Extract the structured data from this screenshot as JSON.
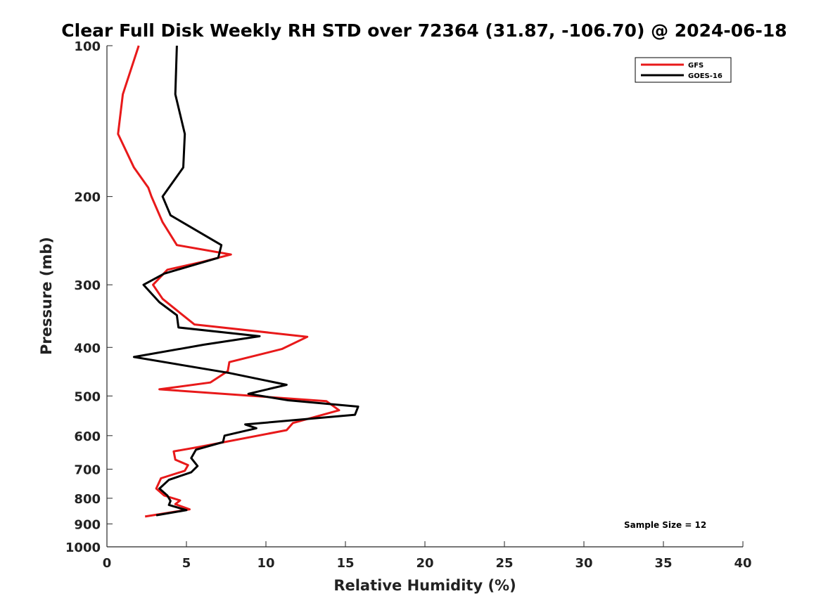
{
  "chart_data": {
    "type": "line",
    "title": "Clear Full Disk Weekly RH STD over 72364 (31.87, -106.70) @ 2024-06-18",
    "xlabel": "Relative Humidity (%)",
    "ylabel": "Pressure (mb)",
    "xlim": [
      0,
      40
    ],
    "ylim": [
      100,
      1000
    ],
    "yscale": "log",
    "yreversed": true,
    "x_ticks": [
      "0",
      "5",
      "10",
      "15",
      "20",
      "25",
      "30",
      "35",
      "40"
    ],
    "y_ticks": [
      "100",
      "200",
      "300",
      "400",
      "500",
      "600",
      "700",
      "800",
      "900",
      "1000"
    ],
    "grid": false,
    "legend_position": "top-right",
    "annotation": "Sample Size = 12",
    "series": [
      {
        "name": "GFS",
        "color": "#e8191a",
        "points": [
          [
            2.0,
            100
          ],
          [
            1.0,
            125
          ],
          [
            0.7,
            150
          ],
          [
            1.7,
            175
          ],
          [
            2.6,
            192
          ],
          [
            2.8,
            200
          ],
          [
            3.5,
            225
          ],
          [
            4.4,
            250
          ],
          [
            7.8,
            261
          ],
          [
            6.0,
            270
          ],
          [
            3.8,
            280
          ],
          [
            2.9,
            300
          ],
          [
            3.5,
            320
          ],
          [
            5.5,
            360
          ],
          [
            12.6,
            381
          ],
          [
            11.0,
            403
          ],
          [
            7.7,
            428
          ],
          [
            7.6,
            446
          ],
          [
            6.5,
            470
          ],
          [
            3.3,
            485
          ],
          [
            13.8,
            512
          ],
          [
            14.6,
            534
          ],
          [
            11.7,
            566
          ],
          [
            11.3,
            585
          ],
          [
            5.8,
            632
          ],
          [
            4.2,
            645
          ],
          [
            4.3,
            670
          ],
          [
            5.1,
            687
          ],
          [
            4.9,
            705
          ],
          [
            3.4,
            730
          ],
          [
            3.1,
            765
          ],
          [
            3.6,
            790
          ],
          [
            4.6,
            808
          ],
          [
            4.3,
            822
          ],
          [
            5.2,
            842
          ],
          [
            2.4,
            870
          ]
        ]
      },
      {
        "name": "GOES-16",
        "color": "#000000",
        "points": [
          [
            4.4,
            100
          ],
          [
            4.3,
            125
          ],
          [
            4.9,
            150
          ],
          [
            4.8,
            175
          ],
          [
            3.5,
            200
          ],
          [
            4.0,
            218
          ],
          [
            7.2,
            250
          ],
          [
            7.0,
            265
          ],
          [
            3.6,
            285
          ],
          [
            2.3,
            300
          ],
          [
            3.3,
            325
          ],
          [
            4.4,
            345
          ],
          [
            4.5,
            365
          ],
          [
            9.6,
            380
          ],
          [
            6.1,
            395
          ],
          [
            1.7,
            418
          ],
          [
            7.7,
            450
          ],
          [
            11.3,
            475
          ],
          [
            8.9,
            495
          ],
          [
            11.4,
            510
          ],
          [
            15.8,
            525
          ],
          [
            15.6,
            545
          ],
          [
            8.7,
            570
          ],
          [
            9.4,
            580
          ],
          [
            7.4,
            600
          ],
          [
            7.3,
            618
          ],
          [
            5.6,
            640
          ],
          [
            5.3,
            665
          ],
          [
            5.7,
            690
          ],
          [
            5.3,
            710
          ],
          [
            3.9,
            735
          ],
          [
            3.3,
            765
          ],
          [
            3.8,
            790
          ],
          [
            4.0,
            810
          ],
          [
            3.9,
            825
          ],
          [
            5.0,
            845
          ],
          [
            3.1,
            865
          ]
        ]
      }
    ]
  }
}
